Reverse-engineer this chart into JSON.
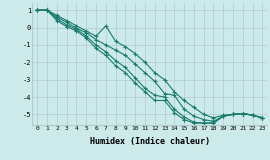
{
  "xlabel": "Humidex (Indice chaleur)",
  "bg_color": "#cdeaea",
  "grid_color": "#b0cccc",
  "line_color": "#1a7a6e",
  "xlim": [
    -0.5,
    23.5
  ],
  "ylim": [
    -5.6,
    1.4
  ],
  "yticks": [
    1,
    0,
    -1,
    -2,
    -3,
    -4,
    -5
  ],
  "xticks": [
    0,
    1,
    2,
    3,
    4,
    5,
    6,
    7,
    8,
    9,
    10,
    11,
    12,
    13,
    14,
    15,
    16,
    17,
    18,
    19,
    20,
    21,
    22,
    23
  ],
  "series": [
    [
      1.0,
      1.0,
      0.7,
      0.4,
      0.1,
      -0.2,
      -0.5,
      0.1,
      -0.8,
      -1.1,
      -1.5,
      -2.0,
      -2.6,
      -3.0,
      -3.7,
      -4.2,
      -4.6,
      -5.0,
      -5.2,
      -5.05,
      -5.0,
      -4.95,
      -5.05,
      -5.2
    ],
    [
      1.0,
      1.0,
      0.6,
      0.3,
      -0.05,
      -0.3,
      -0.7,
      -1.0,
      -1.3,
      -1.6,
      -2.1,
      -2.6,
      -3.1,
      -3.8,
      -3.9,
      -4.7,
      -5.1,
      -5.3,
      -5.4,
      -5.1,
      -5.0,
      -4.95,
      -5.05,
      -5.2
    ],
    [
      1.0,
      1.0,
      0.5,
      0.15,
      -0.1,
      -0.5,
      -1.0,
      -1.4,
      -1.9,
      -2.3,
      -2.9,
      -3.5,
      -3.9,
      -4.0,
      -4.7,
      -5.15,
      -5.45,
      -5.5,
      -5.5,
      -5.1,
      -5.0,
      -4.95,
      -5.05,
      -5.2
    ],
    [
      1.0,
      1.0,
      0.4,
      0.05,
      -0.2,
      -0.6,
      -1.2,
      -1.6,
      -2.2,
      -2.6,
      -3.2,
      -3.7,
      -4.2,
      -4.2,
      -4.9,
      -5.3,
      -5.5,
      -5.5,
      -5.5,
      -5.1,
      -5.0,
      -4.95,
      -5.05,
      -5.2
    ]
  ]
}
